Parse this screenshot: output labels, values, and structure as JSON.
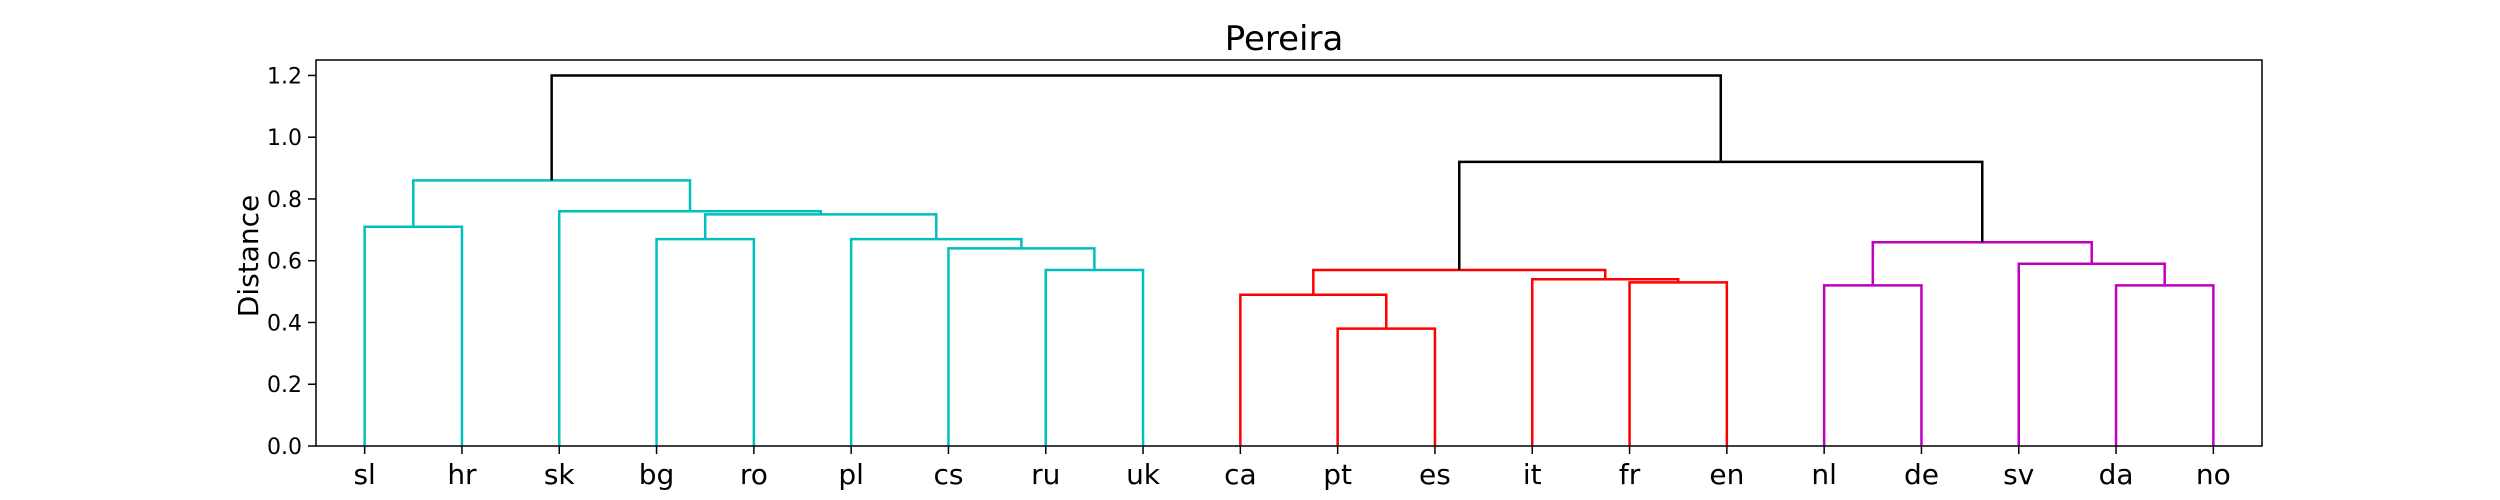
{
  "chart_data": {
    "type": "dendrogram",
    "title": "Pereira",
    "xlabel": "",
    "ylabel": "Distance",
    "ylim": [
      0,
      1.25
    ],
    "yticks": [
      "0.0",
      "0.2",
      "0.4",
      "0.6",
      "0.8",
      "1.0",
      "1.2"
    ],
    "grid": false,
    "leaves": [
      "sl",
      "hr",
      "sk",
      "bg",
      "ro",
      "pl",
      "cs",
      "ru",
      "uk",
      "ca",
      "pt",
      "es",
      "it",
      "fr",
      "en",
      "nl",
      "de",
      "sv",
      "da",
      "no"
    ],
    "merges": [
      {
        "left": "sl",
        "right": "hr",
        "height": 0.71,
        "color": "#00bfbf"
      },
      {
        "left": "bg",
        "right": "ro",
        "height": 0.67,
        "color": "#00bfbf"
      },
      {
        "left": "ru",
        "right": "uk",
        "height": 0.57,
        "color": "#00bfbf"
      },
      {
        "left": "cs",
        "right": "ru+uk",
        "height": 0.64,
        "color": "#00bfbf"
      },
      {
        "left": "pl",
        "right": "cs+ru+uk",
        "height": 0.67,
        "color": "#00bfbf"
      },
      {
        "left": "bg+ro",
        "right": "pl+cs+ru+uk",
        "height": 0.75,
        "color": "#00bfbf"
      },
      {
        "left": "sk",
        "right": "bg+ro+pl+cs+ru+uk",
        "height": 0.76,
        "color": "#00bfbf"
      },
      {
        "left": "sl+hr",
        "right": "sk+bg+ro+pl+cs+ru+uk",
        "height": 0.86,
        "color": "#00bfbf"
      },
      {
        "left": "pt",
        "right": "es",
        "height": 0.38,
        "color": "#ff0000"
      },
      {
        "left": "ca",
        "right": "pt+es",
        "height": 0.49,
        "color": "#ff0000"
      },
      {
        "left": "fr",
        "right": "en",
        "height": 0.53,
        "color": "#ff0000"
      },
      {
        "left": "it",
        "right": "fr+en",
        "height": 0.54,
        "color": "#ff0000"
      },
      {
        "left": "ca+pt+es",
        "right": "it+fr+en",
        "height": 0.57,
        "color": "#ff0000"
      },
      {
        "left": "nl",
        "right": "de",
        "height": 0.52,
        "color": "#bf00bf"
      },
      {
        "left": "da",
        "right": "no",
        "height": 0.52,
        "color": "#bf00bf"
      },
      {
        "left": "sv",
        "right": "da+no",
        "height": 0.59,
        "color": "#bf00bf"
      },
      {
        "left": "nl+de",
        "right": "sv+da+no",
        "height": 0.66,
        "color": "#bf00bf"
      },
      {
        "left": "ca+pt+es+it+fr+en",
        "right": "nl+de+sv+da+no",
        "height": 0.92,
        "color": "#000000"
      },
      {
        "left": "sl+hr+sk+bg+ro+pl+cs+ru+uk",
        "right": "ca+pt+es+it+fr+en+nl+de+sv+da+no",
        "height": 1.2,
        "color": "#000000"
      }
    ]
  }
}
